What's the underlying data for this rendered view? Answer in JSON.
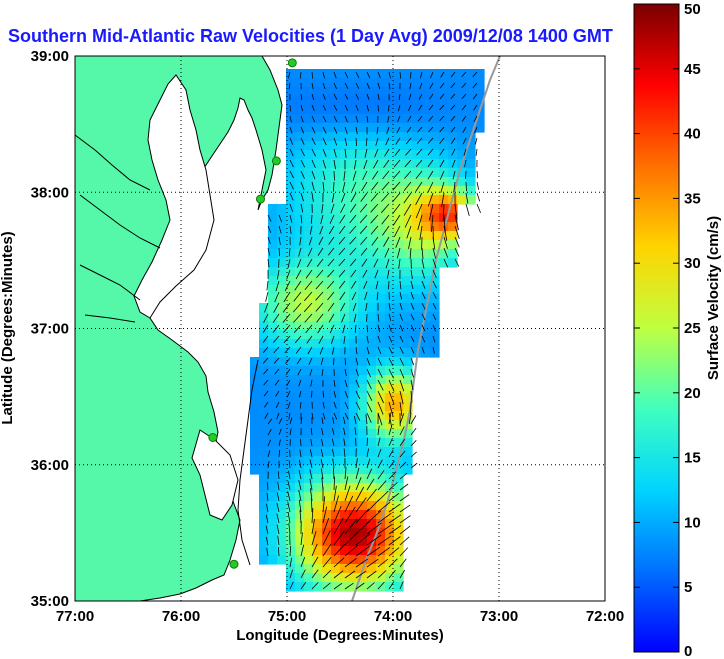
{
  "title": "Southern Mid-Atlantic Raw Velocities (1 Day Avg) 2009/12/08 1400 GMT",
  "axes": {
    "xlabel": "Longitude (Degrees:Minutes)",
    "ylabel": "Latitude (Degrees:Minutes)",
    "x_ticks": [
      "77:00",
      "76:00",
      "75:00",
      "74:00",
      "73:00",
      "72:00"
    ],
    "y_ticks": [
      "39:00",
      "38:00",
      "37:00",
      "36:00",
      "35:00"
    ],
    "x_range": [
      -77,
      -72
    ],
    "y_range": [
      35,
      39
    ]
  },
  "colorbar": {
    "label": "Surface Velocity (cm/s)",
    "ticks": [
      "50",
      "45",
      "40",
      "35",
      "30",
      "25",
      "20",
      "15",
      "10",
      "5",
      "0"
    ],
    "range": [
      0,
      50
    ]
  },
  "colors": {
    "land": "#55f7a9",
    "title": "#1a1aff",
    "stations": "#22cc22"
  },
  "stations_lonlat": [
    [
      -74.95,
      38.95
    ],
    [
      -75.1,
      38.23
    ],
    [
      -75.25,
      37.95
    ],
    [
      -75.7,
      36.2
    ],
    [
      -75.5,
      35.27
    ]
  ]
}
